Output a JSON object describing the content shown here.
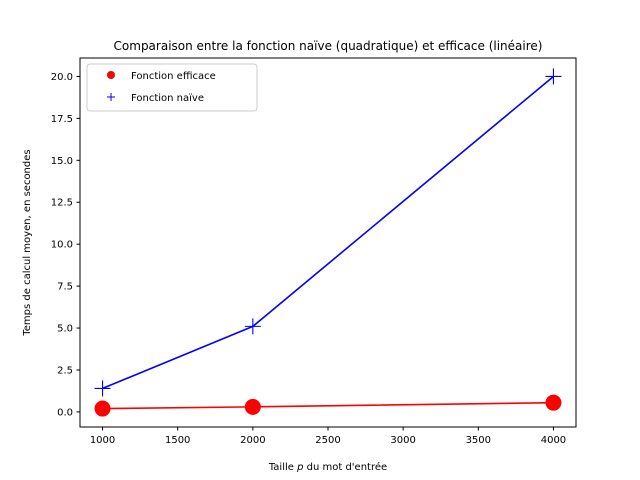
{
  "chart_data": {
    "type": "line",
    "title": "Comparaison entre la fonction naïve (quadratique) et efficace (linéaire)",
    "xlabel_prefix": "Taille ",
    "xlabel_var": "p",
    "xlabel_suffix": " du mot d'entrée",
    "ylabel": "Temps de calcul moyen, en secondes",
    "x": [
      1000,
      2000,
      4000
    ],
    "xlim": [
      850,
      4150
    ],
    "ylim": [
      -0.9,
      21.1
    ],
    "xticks": [
      1000,
      1500,
      2000,
      2500,
      3000,
      3500,
      4000
    ],
    "xtick_labels": [
      "1000",
      "1500",
      "2000",
      "2500",
      "3000",
      "3500",
      "4000"
    ],
    "yticks": [
      0.0,
      2.5,
      5.0,
      7.5,
      10.0,
      12.5,
      15.0,
      17.5,
      20.0
    ],
    "ytick_labels": [
      "0.0",
      "2.5",
      "5.0",
      "7.5",
      "10.0",
      "12.5",
      "15.0",
      "17.5",
      "20.0"
    ],
    "grid": false,
    "legend_position": "top-left",
    "series": [
      {
        "name": "Fonction efficace",
        "values": [
          0.2,
          0.3,
          0.55
        ],
        "color": "#ff0000",
        "marker": "circle"
      },
      {
        "name": "Fonction naïve",
        "values": [
          1.4,
          5.1,
          20.0
        ],
        "color": "#0000ff",
        "marker": "plus"
      }
    ]
  }
}
